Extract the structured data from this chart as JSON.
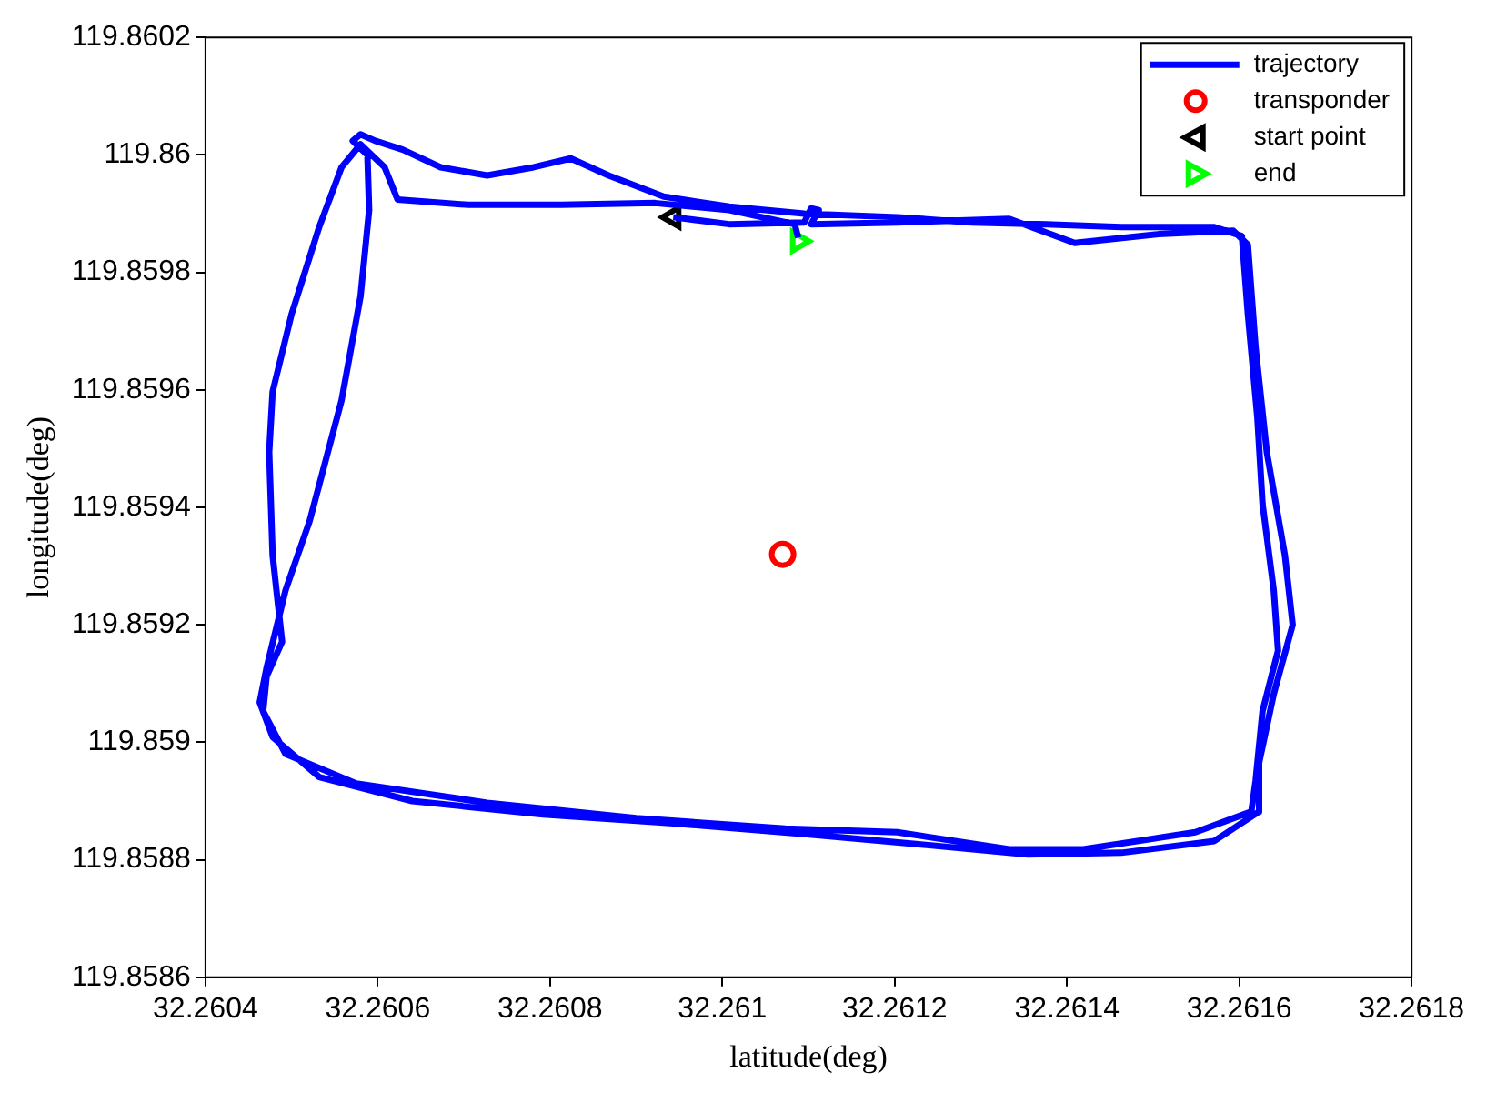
{
  "chart_data": {
    "type": "line",
    "xlabel": "latitude(deg)",
    "ylabel": "longitude(deg)",
    "xlim": [
      32.2604,
      32.2618
    ],
    "xticks": [
      32.2604,
      32.2606,
      32.2608,
      32.261,
      32.2612,
      32.2614,
      32.2616,
      32.2618
    ],
    "ylim": [
      119.8586,
      119.8602
    ],
    "yticks": [
      119.8586,
      119.8588,
      119.859,
      119.8592,
      119.8594,
      119.8596,
      119.8598,
      119.86,
      119.8602
    ],
    "grid": false,
    "legend": "top right",
    "series": [
      {
        "name": "trajectory",
        "type": "line",
        "color": "#0000ff",
        "marker": "none",
        "line_style": "solid",
        "x": [
          32.260943,
          32.261008,
          32.261095,
          32.261103,
          32.261112,
          32.261103,
          32.261203,
          32.261333,
          32.261409,
          32.261506,
          32.261593,
          32.26161,
          32.261619,
          32.261632,
          32.261653,
          32.261662,
          32.26164,
          32.261623,
          32.261623,
          32.261571,
          32.261463,
          32.261355,
          32.261225,
          32.261095,
          32.260943,
          32.260792,
          32.26064,
          32.260532,
          32.260478,
          32.260463,
          32.260471,
          32.260493,
          32.260521,
          32.260558,
          32.26058,
          32.26059,
          32.260588,
          32.260571,
          32.26058,
          32.260597,
          32.260629,
          32.260673,
          32.260727,
          32.260781,
          32.260824,
          32.260868,
          32.260932,
          32.261008,
          32.261095,
          32.261203,
          32.26129,
          32.261376,
          32.261463,
          32.261571,
          32.261603,
          32.26161,
          32.261621,
          32.261627,
          32.26164,
          32.261645,
          32.261627,
          32.261619,
          32.261614,
          32.261549,
          32.261419,
          32.261333,
          32.261203,
          32.261073,
          32.2609,
          32.260727,
          32.260575,
          32.260493,
          32.260467,
          32.260471,
          32.260489,
          32.260478,
          32.260474,
          32.260478,
          32.2605,
          32.260532,
          32.260558,
          32.26058,
          32.260608,
          32.260623,
          32.260705,
          32.260813,
          32.260922,
          32.261008,
          32.261084,
          32.261088
        ],
        "values": [
          119.859894,
          119.859882,
          119.859885,
          119.859909,
          119.859906,
          119.859882,
          119.859885,
          119.859891,
          119.85985,
          119.859865,
          119.859871,
          119.859847,
          119.859671,
          119.859494,
          119.859318,
          119.8592,
          119.859082,
          119.858965,
          119.858882,
          119.858832,
          119.858812,
          119.858809,
          119.858827,
          119.858844,
          119.858862,
          119.858877,
          119.8589,
          119.858941,
          119.859009,
          119.859068,
          119.859127,
          119.859259,
          119.859377,
          119.859582,
          119.859759,
          119.859906,
          119.86,
          119.860024,
          119.860035,
          119.860024,
          119.860009,
          119.859979,
          119.859965,
          119.859979,
          119.859994,
          119.859965,
          119.859929,
          119.859912,
          119.8599,
          119.859894,
          119.859885,
          119.859882,
          119.859877,
          119.859877,
          119.859862,
          119.859729,
          119.859553,
          119.859406,
          119.859259,
          119.859156,
          119.859053,
          119.858935,
          119.858882,
          119.858847,
          119.858818,
          119.858818,
          119.858847,
          119.858853,
          119.858871,
          119.858897,
          119.85893,
          119.85898,
          119.859053,
          119.859112,
          119.859171,
          119.859318,
          119.859494,
          119.859597,
          119.859729,
          119.859877,
          119.859979,
          119.860018,
          119.859979,
          119.859924,
          119.859915,
          119.859915,
          119.859918,
          119.859906,
          119.859882,
          119.859859
        ]
      },
      {
        "name": "transponder",
        "type": "scatter",
        "color": "#ff0000",
        "marker": "circle",
        "x": [
          32.26107
        ],
        "values": [
          119.85932
        ]
      },
      {
        "name": "start point",
        "type": "scatter",
        "color": "#000000",
        "marker": "triangle-left",
        "x": [
          32.260943
        ],
        "values": [
          119.859894
        ]
      },
      {
        "name": "end",
        "type": "scatter",
        "color": "#00ff00",
        "marker": "triangle-right",
        "x": [
          32.261088
        ],
        "values": [
          119.859853
        ]
      }
    ]
  }
}
